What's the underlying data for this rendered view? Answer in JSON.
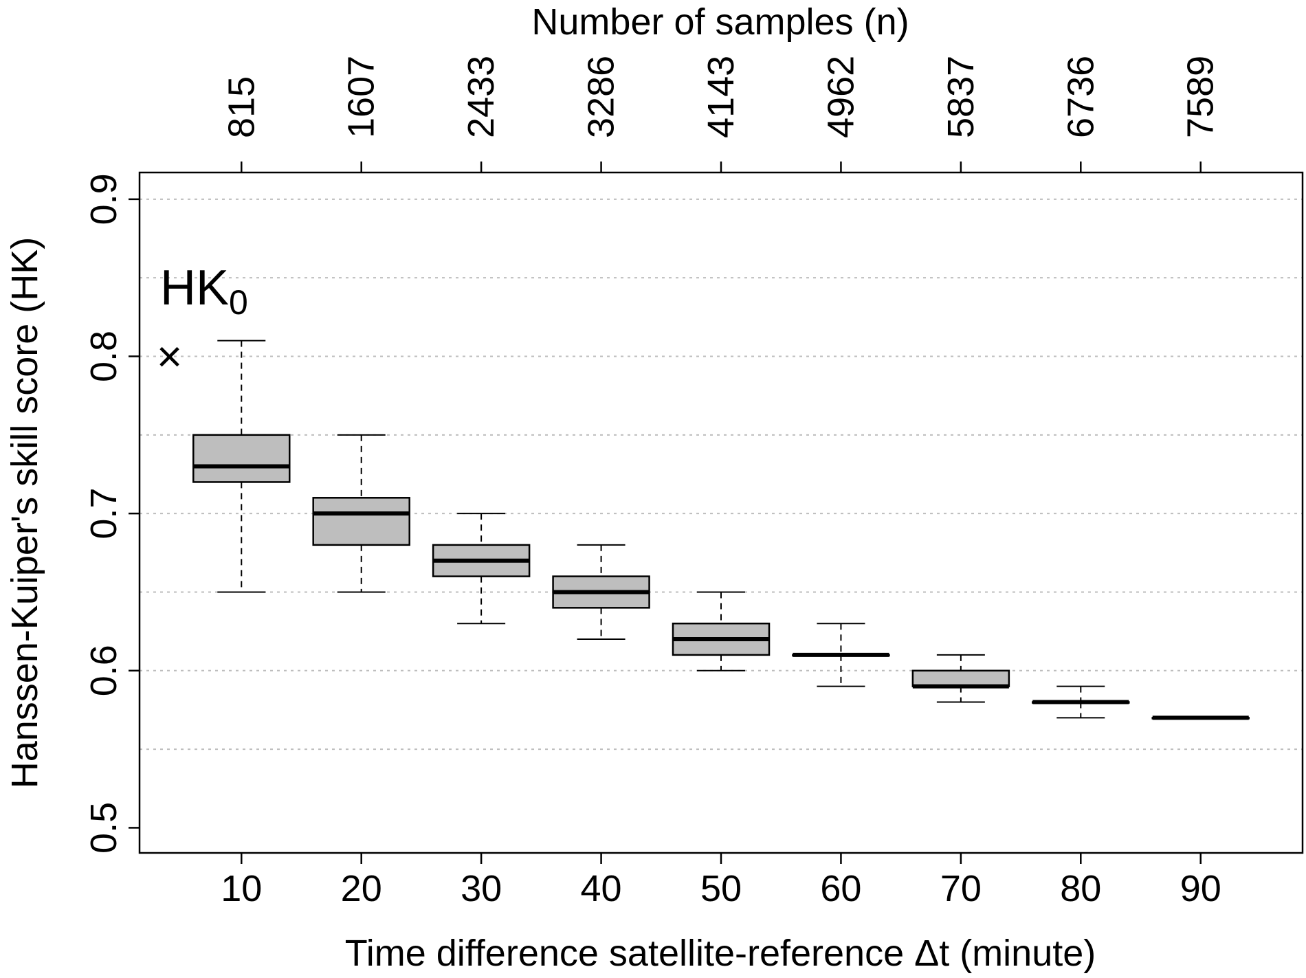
{
  "chart_data": {
    "type": "boxplot",
    "xlabel": "Time difference satellite-reference Δt (minute)",
    "ylabel": "Hanssen-Kuiper's skill score (HK)",
    "top_axis_label": "Number of samples (n)",
    "ylim": [
      0.484,
      0.917
    ],
    "xlim": [
      1.5,
      98.5
    ],
    "grid": "horizontal dotted",
    "y_ticks": [
      0.5,
      0.6,
      0.7,
      0.8,
      0.9
    ],
    "y_tick_labels": [
      "0.5",
      "0.6",
      "0.7",
      "0.8",
      "0.9"
    ],
    "grid_lines": [
      0.55,
      0.6,
      0.65,
      0.7,
      0.75,
      0.8,
      0.85,
      0.9
    ],
    "categories": [
      "10",
      "20",
      "30",
      "40",
      "50",
      "60",
      "70",
      "80",
      "90"
    ],
    "x_values": [
      10,
      20,
      30,
      40,
      50,
      60,
      70,
      80,
      90
    ],
    "n_labels": [
      "815",
      "1607",
      "2433",
      "3286",
      "4143",
      "4962",
      "5837",
      "6736",
      "7589"
    ],
    "boxes": [
      {
        "x": 10,
        "whisker_low": 0.65,
        "q1": 0.72,
        "median": 0.73,
        "q3": 0.75,
        "whisker_high": 0.81
      },
      {
        "x": 20,
        "whisker_low": 0.65,
        "q1": 0.68,
        "median": 0.7,
        "q3": 0.71,
        "whisker_high": 0.75
      },
      {
        "x": 30,
        "whisker_low": 0.63,
        "q1": 0.66,
        "median": 0.67,
        "q3": 0.68,
        "whisker_high": 0.7
      },
      {
        "x": 40,
        "whisker_low": 0.62,
        "q1": 0.64,
        "median": 0.65,
        "q3": 0.66,
        "whisker_high": 0.68
      },
      {
        "x": 50,
        "whisker_low": 0.6,
        "q1": 0.61,
        "median": 0.62,
        "q3": 0.63,
        "whisker_high": 0.65
      },
      {
        "x": 60,
        "whisker_low": 0.59,
        "q1": 0.61,
        "median": 0.61,
        "q3": 0.61,
        "whisker_high": 0.63
      },
      {
        "x": 70,
        "whisker_low": 0.58,
        "q1": 0.59,
        "median": 0.59,
        "q3": 0.6,
        "whisker_high": 0.61
      },
      {
        "x": 80,
        "whisker_low": 0.57,
        "q1": 0.58,
        "median": 0.58,
        "q3": 0.58,
        "whisker_high": 0.59
      },
      {
        "x": 90,
        "whisker_low": 0.57,
        "q1": 0.57,
        "median": 0.57,
        "q3": 0.57,
        "whisker_high": 0.57
      }
    ],
    "reference_point": {
      "label": "HK",
      "subscript": "0",
      "marker": "×",
      "x": 4,
      "y": 0.8
    },
    "colors": {
      "box_fill": "#bebebe",
      "grid": "#bdbdbd",
      "line": "#000000"
    }
  }
}
